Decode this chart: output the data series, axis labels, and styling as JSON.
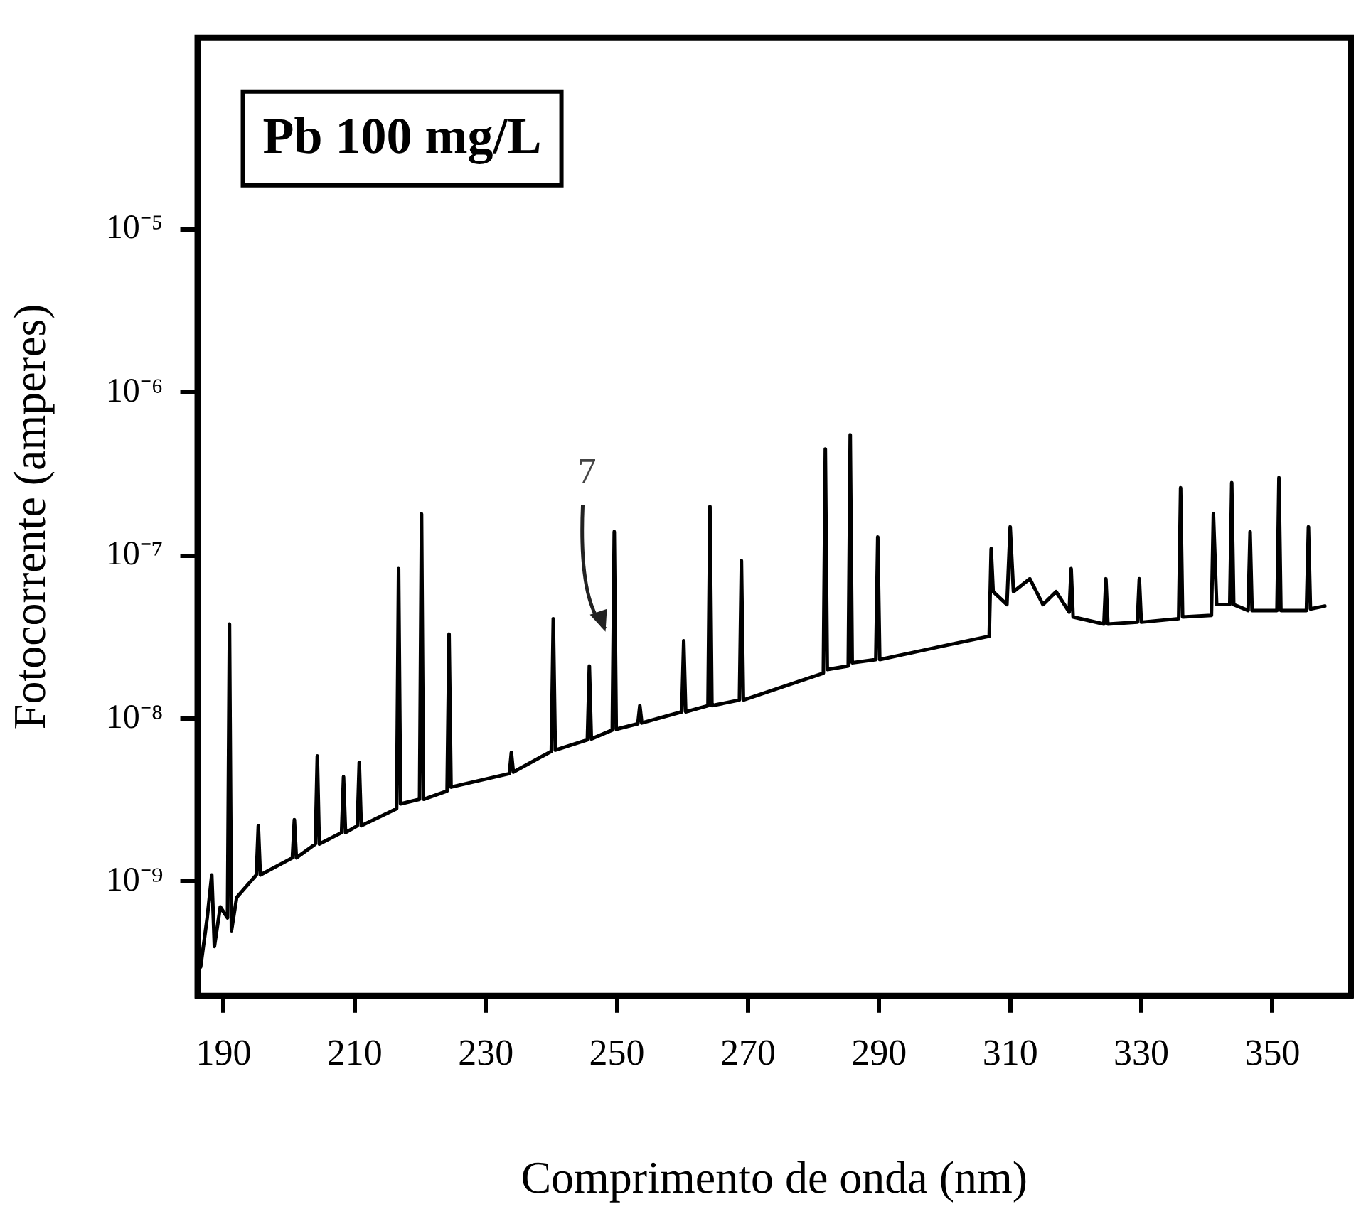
{
  "chart_data": {
    "type": "line",
    "title": "Pb 100 mg/L",
    "xlabel": "Comprimento de onda (nm)",
    "ylabel": "Fotocorrente (amperes)",
    "log": "y",
    "grid": false,
    "legend": false,
    "marker": "none",
    "line_style": "solid",
    "xlim": [
      186,
      362
    ],
    "xticks": [
      190,
      210,
      230,
      250,
      270,
      290,
      310,
      330,
      350
    ],
    "ylim": [
      2e-10,
      0.00015
    ],
    "yticks": [
      {
        "value": 1e-09,
        "label": "10⁻⁹"
      },
      {
        "value": 1e-08,
        "label": "10⁻⁸"
      },
      {
        "value": 1e-07,
        "label": "10⁻⁷"
      },
      {
        "value": 1e-06,
        "label": "10⁻⁶"
      },
      {
        "value": 1e-05,
        "label": "10⁻⁵"
      }
    ],
    "annotations": [
      "7"
    ],
    "series": [
      {
        "color": "#000000",
        "x": [
          186.5,
          187.5,
          188.2,
          188.6,
          189.5,
          190.6,
          190.9,
          191.2,
          192,
          195,
          195.3,
          195.6,
          200.5,
          200.8,
          201.1,
          204,
          204.3,
          204.6,
          208,
          208.3,
          208.6,
          210.4,
          210.7,
          211,
          216.4,
          216.7,
          217,
          219.9,
          220.2,
          220.5,
          224.1,
          224.4,
          224.7,
          233.6,
          233.9,
          234.2,
          240,
          240.3,
          240.6,
          245.5,
          245.8,
          246.1,
          249.3,
          249.6,
          249.9,
          253.2,
          253.5,
          253.8,
          259.9,
          260.2,
          260.5,
          263.9,
          264.2,
          264.5,
          268.7,
          269,
          269.3,
          281.5,
          281.8,
          282.1,
          285.3,
          285.6,
          285.9,
          289.5,
          289.8,
          290.1,
          300,
          306.8,
          307.1,
          307.4,
          309.5,
          310,
          310.5,
          313,
          315,
          317,
          319,
          319.3,
          319.6,
          324.3,
          324.6,
          324.9,
          329.4,
          329.7,
          330,
          335.7,
          336,
          336.3,
          340.7,
          341,
          341.5,
          343.5,
          343.8,
          344.1,
          346.3,
          346.6,
          346.9,
          350.7,
          351,
          351.3,
          355.2,
          355.5,
          355.8,
          358
        ],
        "values": [
          3e-10,
          6e-10,
          1.1e-09,
          4e-10,
          7e-10,
          6e-10,
          3.8e-08,
          5e-10,
          8e-10,
          1.1e-09,
          2.2e-09,
          1.1e-09,
          1.4e-09,
          2.4e-09,
          1.4e-09,
          1.7e-09,
          5.9e-09,
          1.7e-09,
          2e-09,
          4.4e-09,
          2e-09,
          2.2e-09,
          5.4e-09,
          2.2e-09,
          2.8e-09,
          8.3e-08,
          3e-09,
          3.2e-09,
          1.8e-07,
          3.2e-09,
          3.6e-09,
          3.3e-08,
          3.8e-09,
          4.6e-09,
          6.2e-09,
          4.7e-09,
          6.3e-09,
          4.1e-08,
          6.4e-09,
          7.4e-09,
          2.1e-08,
          7.5e-09,
          8.5e-09,
          1.4e-07,
          8.6e-09,
          9.3e-09,
          1.2e-08,
          9.4e-09,
          1.1e-08,
          3e-08,
          1.1e-08,
          1.2e-08,
          2e-07,
          1.2e-08,
          1.3e-08,
          9.3e-08,
          1.3e-08,
          1.9e-08,
          4.5e-07,
          2e-08,
          2.1e-08,
          5.5e-07,
          2.2e-08,
          2.3e-08,
          1.3e-07,
          2.3e-08,
          2.8e-08,
          3.2e-08,
          1.1e-07,
          6e-08,
          5e-08,
          1.5e-07,
          6e-08,
          7.2e-08,
          5e-08,
          6e-08,
          4.5e-08,
          8.3e-08,
          4.2e-08,
          3.8e-08,
          7.2e-08,
          3.8e-08,
          3.9e-08,
          7.2e-08,
          3.9e-08,
          4.1e-08,
          2.6e-07,
          4.2e-08,
          4.3e-08,
          1.8e-07,
          5e-08,
          5e-08,
          2.8e-07,
          5e-08,
          4.6e-08,
          1.4e-07,
          4.6e-08,
          4.6e-08,
          3e-07,
          4.6e-08,
          4.6e-08,
          1.5e-07,
          4.7e-08,
          4.9e-08
        ]
      }
    ]
  }
}
